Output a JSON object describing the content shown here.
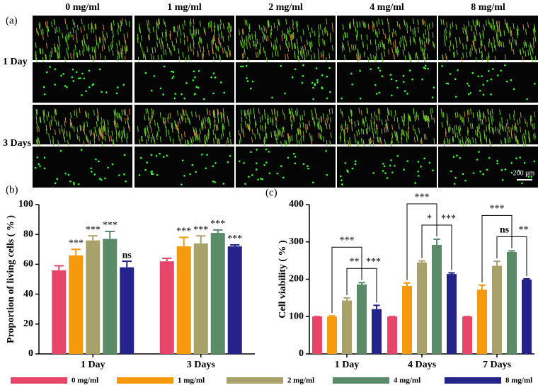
{
  "panel_a": {
    "label": "(a)",
    "columns": [
      "0 mg/ml",
      "1 mg/ml",
      "2 mg/ml",
      "4 mg/ml",
      "8 mg/ml"
    ],
    "rows": [
      "1 Day",
      "3 Days"
    ],
    "scale_bar": "200 μm"
  },
  "chart_data": [
    {
      "type": "bar",
      "panel_label": "(b)",
      "y_label": "Proportion of living cells ( % )",
      "categories": [
        "1 Day",
        "3 Days"
      ],
      "ylim": [
        0,
        100
      ],
      "yticks": [
        0,
        20,
        40,
        60,
        80,
        100
      ],
      "series": [
        {
          "name": "0 mg/ml",
          "color": "#e8456a",
          "values": [
            56,
            62
          ],
          "errors": [
            3,
            2
          ],
          "significance": [
            null,
            null
          ]
        },
        {
          "name": "1 mg/ml",
          "color": "#f59a0c",
          "values": [
            66,
            72
          ],
          "errors": [
            4,
            6
          ],
          "significance": [
            "***",
            "***"
          ]
        },
        {
          "name": "2 mg/ml",
          "color": "#a8a26a",
          "values": [
            76,
            74
          ],
          "errors": [
            3,
            5
          ],
          "significance": [
            "***",
            "***"
          ]
        },
        {
          "name": "4 mg/ml",
          "color": "#5a8a68",
          "values": [
            77,
            81
          ],
          "errors": [
            5,
            2
          ],
          "significance": [
            "***",
            "***"
          ]
        },
        {
          "name": "8 mg/ml",
          "color": "#23238a",
          "values": [
            58,
            72
          ],
          "errors": [
            4,
            1
          ],
          "significance": [
            "ns",
            "***"
          ]
        }
      ]
    },
    {
      "type": "bar",
      "panel_label": "(c)",
      "y_label": "Cell viability ( % )",
      "categories": [
        "1 Day",
        "4 Days",
        "7 Days"
      ],
      "ylim": [
        0,
        400
      ],
      "yticks": [
        0,
        100,
        200,
        300,
        400
      ],
      "series": [
        {
          "color": "#e8456a",
          "values": [
            100,
            100,
            100
          ],
          "errors": [
            0,
            0,
            0
          ]
        },
        {
          "color": "#f59a0c",
          "values": [
            100,
            182,
            172
          ],
          "errors": [
            2,
            8,
            12
          ],
          "comparison": [
            "***",
            "***",
            "***"
          ]
        },
        {
          "color": "#a8a26a",
          "values": [
            143,
            245,
            236
          ],
          "errors": [
            7,
            4,
            12
          ],
          "comparison": [
            "**",
            "*",
            "ns"
          ]
        },
        {
          "color": "#5a8a68",
          "values": [
            186,
            292,
            273
          ],
          "errors": [
            5,
            15,
            3
          ]
        },
        {
          "color": "#23238a",
          "values": [
            120,
            214,
            199
          ],
          "errors": [
            10,
            3,
            2
          ],
          "comparison": [
            "***",
            "***",
            "**"
          ]
        }
      ]
    }
  ]
}
